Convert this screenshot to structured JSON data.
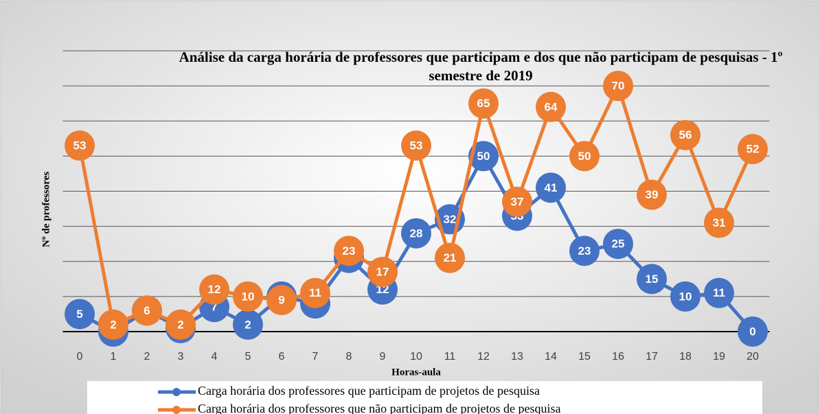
{
  "chart_data": {
    "type": "line",
    "title": "Análise da carga horária de professores que participam e dos que não participam de pesquisas - 1º semestre de 2019",
    "x_label": "Horas-aula",
    "y_label": "Nº de professores",
    "categories": [
      "0",
      "1",
      "2",
      "3",
      "4",
      "5",
      "6",
      "7",
      "8",
      "9",
      "10",
      "11",
      "12",
      "13",
      "14",
      "15",
      "16",
      "17",
      "18",
      "19",
      "20"
    ],
    "series": [
      {
        "name": "Carga horária dos professores que participam de projetos de pesquisa",
        "color": "#4472c4",
        "values": [
          5,
          0,
          6,
          1,
          7,
          2,
          10,
          8,
          21,
          12,
          28,
          32,
          50,
          33,
          41,
          23,
          25,
          15,
          10,
          11,
          0
        ]
      },
      {
        "name": "Carga horária dos professores que não participam de projetos de pesquisa",
        "color": "#ed7d31",
        "values": [
          53,
          2,
          6,
          2,
          12,
          10,
          9,
          11,
          23,
          17,
          53,
          21,
          65,
          37,
          64,
          50,
          70,
          39,
          56,
          31,
          52
        ]
      }
    ],
    "ylim": [
      0,
      80
    ],
    "yticks": [
      0,
      10,
      20,
      30,
      40,
      50,
      60,
      70,
      80
    ],
    "grid": true,
    "legend": "bottom"
  }
}
